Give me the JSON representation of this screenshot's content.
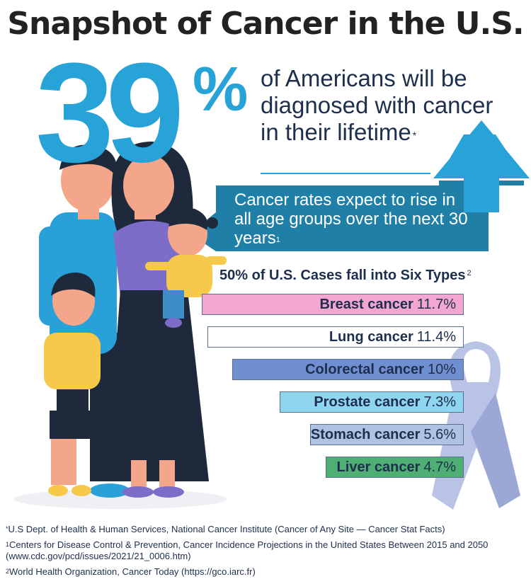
{
  "title": "Snapshot of Cancer in the U.S.",
  "headline": {
    "number": "39",
    "percent_sign": "%",
    "text": "of Americans will be diagnosed with cancer in their lifetime",
    "marker": "*"
  },
  "rise_banner": {
    "text": "Cancer rates expect to rise in all age groups over the next 30 years",
    "marker": "1"
  },
  "types_heading": {
    "text": "50% of U.S. Cases fall into Six Types",
    "marker": "2"
  },
  "colors": {
    "accent_blue": "#27a3d8",
    "dark_navy": "#1d2f4c",
    "ribbon": "#b9c3e6"
  },
  "chart_data": {
    "type": "bar",
    "orientation": "horizontal",
    "title": "50% of U.S. Cases fall into Six Types",
    "categories": [
      "Breast cancer",
      "Lung cancer",
      "Colorectal cancer",
      "Prostate cancer",
      "Stomach cancer",
      "Liver cancer"
    ],
    "values": [
      11.7,
      11.4,
      10,
      7.3,
      5.6,
      4.7
    ],
    "value_labels": [
      "11.7%",
      "11.4%",
      "10%",
      "7.3%",
      "5.6%",
      "4.7%"
    ],
    "bar_colors": [
      "#f1a7cf",
      "#ffffff",
      "#6f8fd0",
      "#8fd5ef",
      "#aec3e1",
      "#4fae73"
    ],
    "grid": false
  },
  "footnotes": [
    {
      "marker": "*",
      "text": "U.S Dept. of Health & Human Services, National Cancer Institute (Cancer of Any Site — Cancer Stat Facts)"
    },
    {
      "marker": "1",
      "text": "Centers for Disease Control & Prevention, Cancer Incidence Projections in the United States Between 2015 and 2050 (www.cdc.gov/pcd/issues/2021/21_0006.htm)"
    },
    {
      "marker": "2",
      "text": "World Health Organization, Cancer Today (https://gco.iarc.fr)"
    }
  ]
}
